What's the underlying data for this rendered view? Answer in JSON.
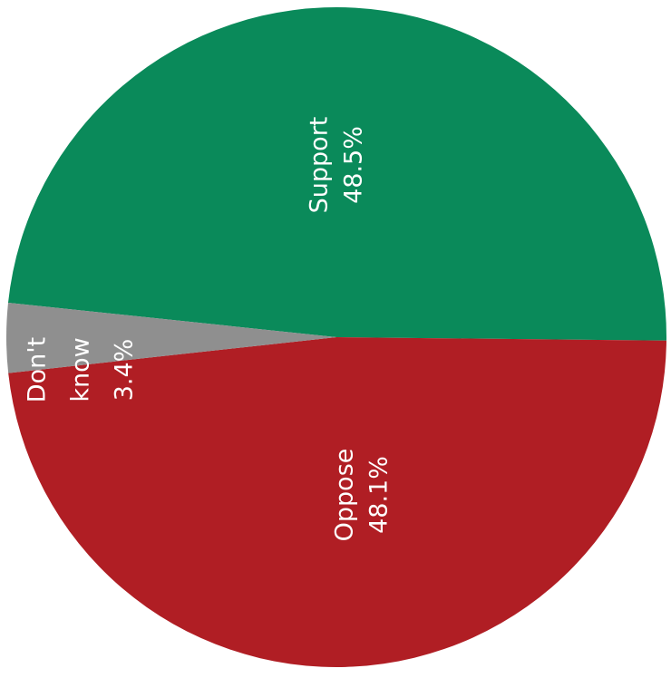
{
  "chart_data": {
    "type": "pie",
    "slices": [
      {
        "label": "Support",
        "value": 48.5,
        "value_label": "48.5%",
        "color": "#0a8a5a"
      },
      {
        "label": "Oppose",
        "value": 48.1,
        "value_label": "48.1%",
        "color": "#b01e24"
      },
      {
        "label": "Don't know",
        "label_lines": [
          "Don't",
          "know"
        ],
        "value": 3.4,
        "value_label": "3.4%",
        "color": "#8f8f8f"
      }
    ],
    "label_orientation": "rotated-90-ccw",
    "legend": "none"
  }
}
